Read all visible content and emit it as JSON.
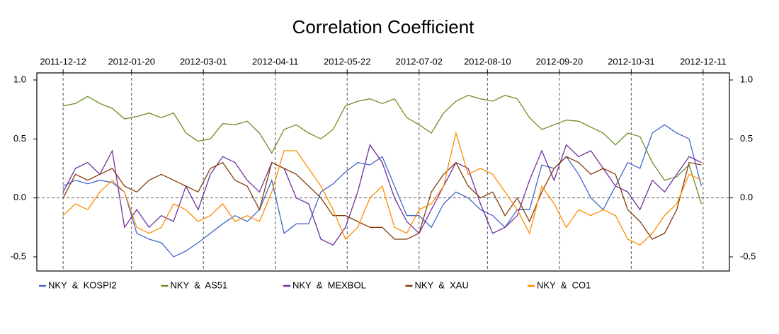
{
  "chart_data": {
    "type": "line",
    "title": "Correlation Coefficient",
    "x": [
      "2011-12-12",
      "2011-12-19",
      "2011-12-26",
      "2012-01-02",
      "2012-01-09",
      "2012-01-16",
      "2012-01-23",
      "2012-01-30",
      "2012-02-06",
      "2012-02-13",
      "2012-02-20",
      "2012-02-27",
      "2012-03-05",
      "2012-03-12",
      "2012-03-19",
      "2012-03-26",
      "2012-04-02",
      "2012-04-09",
      "2012-04-16",
      "2012-04-23",
      "2012-04-30",
      "2012-05-07",
      "2012-05-14",
      "2012-05-21",
      "2012-05-28",
      "2012-06-04",
      "2012-06-11",
      "2012-06-18",
      "2012-06-25",
      "2012-07-02",
      "2012-07-09",
      "2012-07-16",
      "2012-07-23",
      "2012-07-30",
      "2012-08-06",
      "2012-08-13",
      "2012-08-20",
      "2012-08-27",
      "2012-09-03",
      "2012-09-10",
      "2012-09-17",
      "2012-09-24",
      "2012-10-01",
      "2012-10-08",
      "2012-10-15",
      "2012-10-22",
      "2012-10-29",
      "2012-11-05",
      "2012-11-12",
      "2012-11-19",
      "2012-11-26",
      "2012-12-03",
      "2012-12-10"
    ],
    "series": [
      {
        "name": "NKY  &  KOSPI2",
        "color": "#4466cc",
        "values": [
          0.1,
          0.15,
          0.12,
          0.15,
          0.13,
          0.05,
          -0.3,
          -0.35,
          -0.38,
          -0.5,
          -0.45,
          -0.38,
          -0.3,
          -0.22,
          -0.15,
          -0.2,
          -0.1,
          0.15,
          -0.3,
          -0.22,
          -0.22,
          0.05,
          0.12,
          0.22,
          0.3,
          0.28,
          0.35,
          0.1,
          -0.15,
          -0.15,
          -0.25,
          -0.05,
          0.05,
          0.0,
          -0.1,
          -0.15,
          -0.25,
          -0.1,
          -0.1,
          0.28,
          0.25,
          0.35,
          0.2,
          0.0,
          -0.1,
          0.1,
          0.3,
          0.25,
          0.55,
          0.62,
          0.55,
          0.5,
          0.1
        ]
      },
      {
        "name": "NKY  &  AS51",
        "color": "#6b8e23",
        "values": [
          0.78,
          0.8,
          0.86,
          0.8,
          0.76,
          0.67,
          0.69,
          0.72,
          0.68,
          0.72,
          0.55,
          0.48,
          0.5,
          0.63,
          0.62,
          0.65,
          0.55,
          0.38,
          0.58,
          0.62,
          0.55,
          0.5,
          0.58,
          0.78,
          0.82,
          0.84,
          0.8,
          0.84,
          0.68,
          0.62,
          0.55,
          0.72,
          0.82,
          0.87,
          0.84,
          0.82,
          0.87,
          0.84,
          0.68,
          0.58,
          0.62,
          0.66,
          0.65,
          0.6,
          0.55,
          0.45,
          0.55,
          0.52,
          0.3,
          0.15,
          0.18,
          0.28,
          -0.05
        ]
      },
      {
        "name": "NKY  &  MEXBOL",
        "color": "#7030a0",
        "values": [
          0.05,
          0.25,
          0.3,
          0.2,
          0.4,
          -0.25,
          -0.1,
          -0.25,
          -0.15,
          -0.2,
          0.1,
          -0.1,
          0.2,
          0.35,
          0.3,
          0.15,
          0.05,
          0.3,
          0.25,
          0.0,
          -0.05,
          -0.35,
          -0.4,
          -0.25,
          0.05,
          0.45,
          0.3,
          0.0,
          -0.2,
          -0.3,
          -0.1,
          0.1,
          0.3,
          0.25,
          -0.05,
          -0.3,
          -0.25,
          -0.15,
          0.15,
          0.4,
          0.15,
          0.45,
          0.35,
          0.4,
          0.25,
          0.1,
          0.05,
          -0.1,
          0.15,
          0.05,
          0.2,
          0.35,
          0.3
        ]
      },
      {
        "name": "NKY  &  XAU",
        "color": "#843c0c",
        "values": [
          0.0,
          0.2,
          0.15,
          0.2,
          0.25,
          0.1,
          0.05,
          0.15,
          0.2,
          0.15,
          0.1,
          0.05,
          0.25,
          0.3,
          0.15,
          0.1,
          -0.1,
          0.3,
          0.25,
          0.2,
          0.1,
          0.0,
          -0.15,
          -0.15,
          -0.2,
          -0.25,
          -0.25,
          -0.35,
          -0.35,
          -0.3,
          0.05,
          0.2,
          0.3,
          0.1,
          0.0,
          0.05,
          -0.15,
          0.0,
          -0.2,
          0.05,
          0.25,
          0.35,
          0.3,
          0.2,
          0.25,
          0.2,
          -0.1,
          -0.2,
          -0.35,
          -0.3,
          -0.1,
          0.3,
          0.28
        ]
      },
      {
        "name": "NKY  &  CO1",
        "color": "#ff8c00",
        "values": [
          -0.15,
          -0.05,
          -0.1,
          0.05,
          0.15,
          0.05,
          -0.25,
          -0.3,
          -0.25,
          -0.05,
          -0.1,
          -0.2,
          -0.15,
          -0.05,
          -0.2,
          -0.15,
          -0.2,
          0.05,
          0.4,
          0.4,
          0.25,
          0.1,
          -0.1,
          -0.35,
          -0.25,
          0.0,
          0.1,
          -0.25,
          -0.3,
          -0.1,
          -0.05,
          0.1,
          0.55,
          0.2,
          0.25,
          0.2,
          0.05,
          -0.1,
          -0.3,
          0.1,
          -0.05,
          -0.25,
          -0.1,
          -0.15,
          -0.1,
          -0.15,
          -0.35,
          -0.4,
          -0.3,
          -0.15,
          -0.05,
          0.2,
          0.15
        ]
      }
    ],
    "xlim": [
      "2011-11-27",
      "2012-12-26"
    ],
    "xticks": [
      "2011-12-12",
      "2012-01-20",
      "2012-03-01",
      "2012-04-11",
      "2012-05-22",
      "2012-07-02",
      "2012-08-10",
      "2012-09-20",
      "2012-10-31",
      "2012-12-11"
    ],
    "ylim": [
      -0.62,
      1.06
    ],
    "yticks": [
      -0.5,
      {
        "value": 0,
        "label": "0.0"
      },
      0.5,
      {
        "value": 1,
        "label": "1.0"
      }
    ],
    "grid": true,
    "legend": "bottom"
  }
}
